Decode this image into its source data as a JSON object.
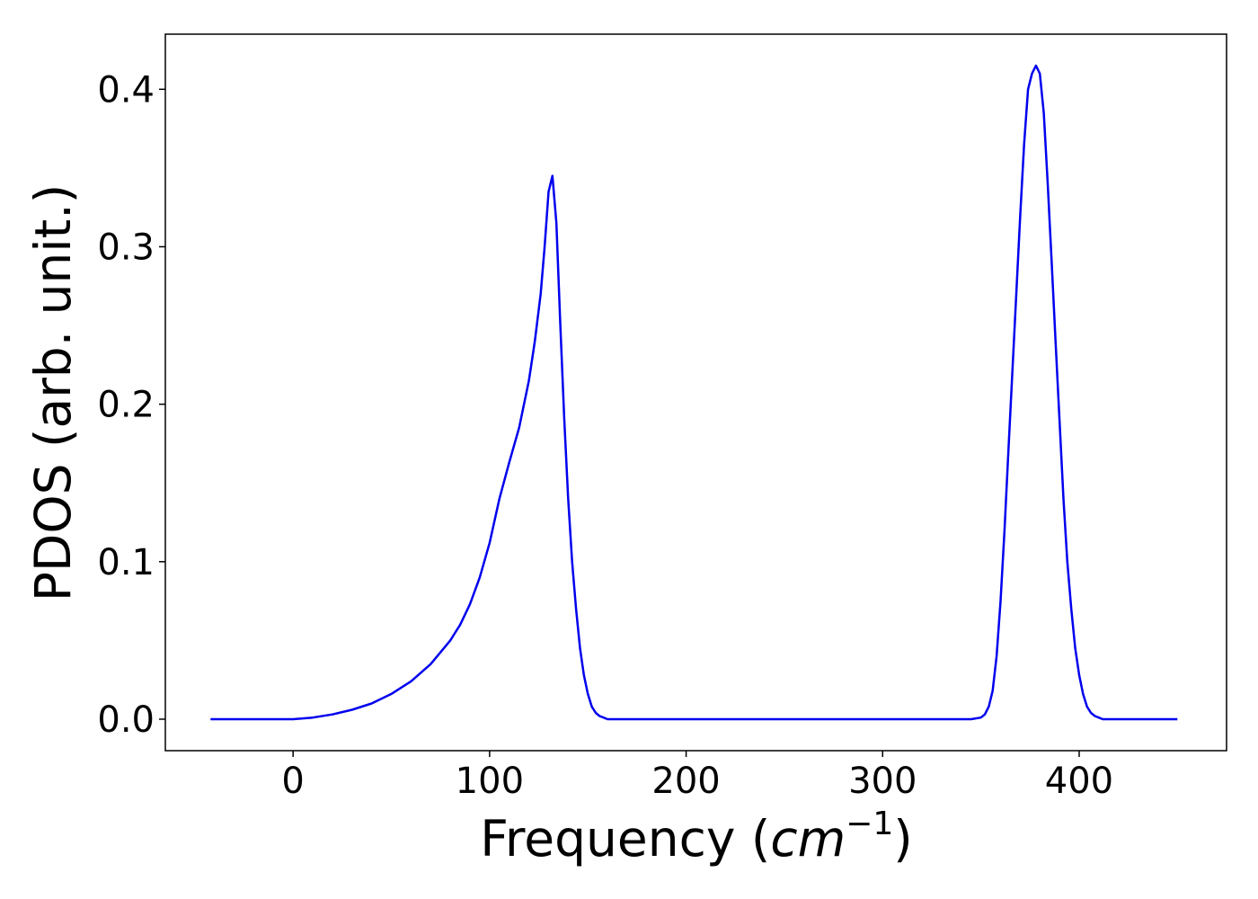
{
  "chart_data": {
    "type": "line",
    "title": "",
    "xlabel": {
      "text": "Frequency (",
      "math_base": "cm",
      "math_sup": "−1",
      "close": ")"
    },
    "ylabel": "PDOS (arb. unit.)",
    "xlim": [
      -65,
      475
    ],
    "ylim": [
      -0.02,
      0.435
    ],
    "grid": false,
    "legend": "none",
    "xticks": [
      0,
      100,
      200,
      300,
      400
    ],
    "xtick_labels": [
      "0",
      "100",
      "200",
      "300",
      "400"
    ],
    "yticks": [
      0.0,
      0.1,
      0.2,
      0.3,
      0.4
    ],
    "ytick_labels": [
      "0.0",
      "0.1",
      "0.2",
      "0.3",
      "0.4"
    ],
    "series": [
      {
        "color": "#0000ee",
        "x": [
          -42,
          -20,
          0,
          10,
          20,
          30,
          40,
          50,
          60,
          70,
          80,
          85,
          90,
          95,
          100,
          105,
          110,
          115,
          120,
          123,
          126,
          128,
          130,
          132,
          134,
          136,
          138,
          140,
          142,
          144,
          146,
          148,
          150,
          152,
          154,
          156,
          158,
          160,
          163,
          170,
          200,
          300,
          345,
          350,
          352,
          354,
          356,
          358,
          360,
          362,
          364,
          366,
          368,
          370,
          372,
          374,
          376,
          378,
          380,
          382,
          384,
          386,
          388,
          390,
          392,
          394,
          396,
          398,
          400,
          402,
          404,
          406,
          408,
          410,
          412,
          414,
          416,
          418,
          420,
          425,
          450
        ],
        "y": [
          0.0,
          0.0,
          0.0,
          0.001,
          0.003,
          0.006,
          0.01,
          0.016,
          0.024,
          0.035,
          0.05,
          0.06,
          0.073,
          0.09,
          0.112,
          0.14,
          0.163,
          0.185,
          0.215,
          0.24,
          0.27,
          0.3,
          0.335,
          0.345,
          0.315,
          0.25,
          0.19,
          0.14,
          0.1,
          0.07,
          0.045,
          0.028,
          0.016,
          0.008,
          0.004,
          0.002,
          0.001,
          0.0,
          0.0,
          0.0,
          0.0,
          0.0,
          0.0,
          0.001,
          0.003,
          0.008,
          0.018,
          0.04,
          0.075,
          0.12,
          0.17,
          0.22,
          0.27,
          0.32,
          0.365,
          0.4,
          0.41,
          0.415,
          0.41,
          0.385,
          0.34,
          0.29,
          0.24,
          0.19,
          0.14,
          0.1,
          0.07,
          0.045,
          0.028,
          0.016,
          0.008,
          0.004,
          0.002,
          0.001,
          0.0,
          0.0,
          0.0,
          0.0,
          0.0,
          0.0,
          0.0
        ]
      }
    ]
  }
}
